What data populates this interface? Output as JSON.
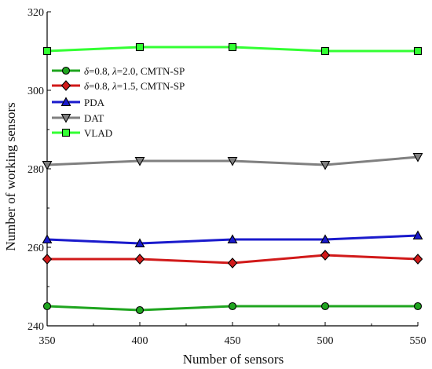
{
  "chart_data": {
    "type": "line",
    "title": "",
    "xlabel": "Number of sensors",
    "ylabel": "Number of working sensors",
    "x": [
      350,
      400,
      450,
      500,
      550
    ],
    "xlim": [
      350,
      550
    ],
    "ylim": [
      240,
      320
    ],
    "xticks": [
      "350",
      "400",
      "450",
      "500",
      "550"
    ],
    "yticks": [
      "240",
      "260",
      "280",
      "300",
      "320"
    ],
    "grid": false,
    "legend_position": "upper-left",
    "series": [
      {
        "name": "δ=0.8, λ=2.0, CMTN-SP",
        "name_parts": {
          "delta": "δ",
          "delta_value": "=0.8, ",
          "lambda": "λ",
          "lambda_value": "=2.0, CMTN-SP"
        },
        "values": [
          245,
          244,
          245,
          245,
          245
        ],
        "color": "#1fa51f",
        "marker": "circle"
      },
      {
        "name": "δ=0.8, λ=1.5, CMTN-SP",
        "name_parts": {
          "delta": "δ",
          "delta_value": "=0.8, ",
          "lambda": "λ",
          "lambda_value": "=1.5, CMTN-SP"
        },
        "values": [
          257,
          257,
          256,
          258,
          257
        ],
        "color": "#d11a1a",
        "marker": "diamond"
      },
      {
        "name": "PDA",
        "values": [
          262,
          261,
          262,
          262,
          263
        ],
        "color": "#1a1acc",
        "marker": "triangle-up"
      },
      {
        "name": "DAT",
        "values": [
          281,
          282,
          282,
          281,
          283
        ],
        "color": "#808080",
        "marker": "triangle-down"
      },
      {
        "name": "VLAD",
        "values": [
          310,
          311,
          311,
          310,
          310
        ],
        "color": "#33ff33",
        "marker": "square"
      }
    ]
  }
}
